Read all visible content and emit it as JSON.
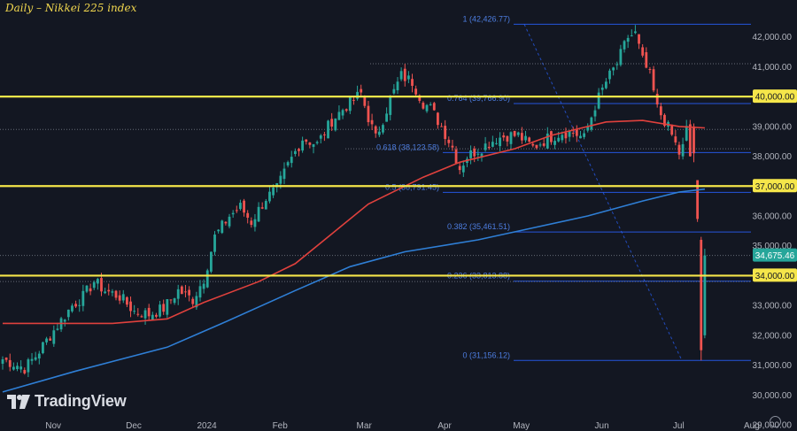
{
  "title": "Daily – Nikkei 225 index",
  "brand": "TradingView",
  "icons": {
    "logo": "tradingview-logo-icon",
    "settings": "settings-gear-icon"
  },
  "colors": {
    "background": "#131722",
    "up_candle": "#26a69a",
    "down_candle": "#ef5350",
    "sma_red": "#e0413d",
    "sma_blue": "#2f7fd6",
    "horizontal_levels": "#f5e64a",
    "fib_lines": "#2962ff",
    "axis_text": "#b2b5be",
    "last_price_tag": "#26a69a"
  },
  "chart_data": {
    "type": "candlestick",
    "title": "Daily – Nikkei 225 index",
    "ylim": [
      29000,
      43000
    ],
    "x_tick_labels": [
      "Nov",
      "Dec",
      "2024",
      "Feb",
      "Mar",
      "Apr",
      "May",
      "Jun",
      "Jul",
      "Aug"
    ],
    "y_tick_labels": [
      {
        "value": 29000,
        "label": "29,000.00"
      },
      {
        "value": 30000,
        "label": "30,000.00"
      },
      {
        "value": 31000,
        "label": "31,000.00"
      },
      {
        "value": 32000,
        "label": "32,000.00"
      },
      {
        "value": 33000,
        "label": "33,000.00"
      },
      {
        "value": 34000,
        "label": "34,000.00"
      },
      {
        "value": 35000,
        "label": "35,000.00"
      },
      {
        "value": 36000,
        "label": "36,000.00"
      },
      {
        "value": 37000,
        "label": "37,000.00"
      },
      {
        "value": 38000,
        "label": "38,000.00"
      },
      {
        "value": 39000,
        "label": "39,000.00"
      },
      {
        "value": 40000,
        "label": "40,000.00"
      },
      {
        "value": 41000,
        "label": "41,000.00"
      },
      {
        "value": 42000,
        "label": "42,000.00"
      }
    ],
    "highlight_levels": [
      {
        "value": 40000,
        "label": "40,000.00"
      },
      {
        "value": 37000,
        "label": "37,000.00"
      },
      {
        "value": 34000,
        "label": "34,000.00"
      }
    ],
    "last_price": {
      "value": 34675.46,
      "label": "34,675.46"
    },
    "fibonacci": [
      {
        "ratio": "1",
        "value": 42426.77,
        "label": "1 (42,426.77)"
      },
      {
        "ratio": "0.764",
        "value": 39766.9,
        "label": "0.764 (39,766.90)"
      },
      {
        "ratio": "0.618",
        "value": 38123.58,
        "label": "0.618 (38,123.58)"
      },
      {
        "ratio": "0.5",
        "value": 36791.45,
        "label": "0.5 (36,791.45)"
      },
      {
        "ratio": "0.382",
        "value": 35461.51,
        "label": "0.382 (35,461.51)"
      },
      {
        "ratio": "0.236",
        "value": 33813.88,
        "label": "0.236 (33,813.88)"
      },
      {
        "ratio": "0",
        "value": 31156.12,
        "label": "0 (31,156.12)"
      }
    ],
    "grid": false,
    "candle_count": 190,
    "waypoints": [
      [
        0,
        31200
      ],
      [
        6,
        30900
      ],
      [
        9,
        31300
      ],
      [
        13,
        32000
      ],
      [
        16,
        32500
      ],
      [
        19,
        33000
      ],
      [
        22,
        33300
      ],
      [
        25,
        33800
      ],
      [
        28,
        33500
      ],
      [
        32,
        33300
      ],
      [
        36,
        32800
      ],
      [
        40,
        32700
      ],
      [
        44,
        32900
      ],
      [
        48,
        33500
      ],
      [
        52,
        33200
      ],
      [
        55,
        33900
      ],
      [
        58,
        35300
      ],
      [
        62,
        36000
      ],
      [
        65,
        36300
      ],
      [
        68,
        35800
      ],
      [
        72,
        36600
      ],
      [
        75,
        36900
      ],
      [
        78,
        37700
      ],
      [
        82,
        38600
      ],
      [
        86,
        38400
      ],
      [
        90,
        39200
      ],
      [
        94,
        39700
      ],
      [
        98,
        40100
      ],
      [
        100,
        39300
      ],
      [
        102,
        38600
      ],
      [
        106,
        39900
      ],
      [
        109,
        40700
      ],
      [
        112,
        40500
      ],
      [
        115,
        39800
      ],
      [
        117,
        39600
      ],
      [
        120,
        39000
      ],
      [
        123,
        38300
      ],
      [
        125,
        37600
      ],
      [
        127,
        38000
      ],
      [
        131,
        38300
      ],
      [
        135,
        38600
      ],
      [
        138,
        38700
      ],
      [
        141,
        38700
      ],
      [
        145,
        38300
      ],
      [
        149,
        38600
      ],
      [
        153,
        38800
      ],
      [
        156,
        38800
      ],
      [
        159,
        38600
      ],
      [
        162,
        39700
      ],
      [
        165,
        40500
      ],
      [
        168,
        41100
      ],
      [
        171,
        42000
      ],
      [
        173,
        42100
      ],
      [
        175,
        41200
      ],
      [
        177,
        40700
      ],
      [
        179,
        39600
      ],
      [
        181,
        39200
      ],
      [
        183,
        38700
      ],
      [
        185,
        38100
      ],
      [
        186,
        38300
      ],
      [
        187,
        38900
      ],
      [
        188,
        38000
      ],
      [
        189,
        37200
      ],
      [
        190,
        36000
      ],
      [
        191,
        31500
      ],
      [
        192,
        34675.46
      ]
    ],
    "last_candles": [
      {
        "open": 39000,
        "high": 39100,
        "low": 37800,
        "close": 38100
      },
      {
        "open": 37200,
        "high": 37200,
        "low": 35800,
        "close": 35900
      },
      {
        "open": 35200,
        "high": 35300,
        "low": 31156.12,
        "close": 31500
      },
      {
        "open": 32000,
        "high": 34900,
        "low": 31900,
        "close": 34675.46
      }
    ],
    "series": [
      {
        "kind": "sma",
        "color": "red",
        "points": [
          [
            0,
            32400
          ],
          [
            30,
            32400
          ],
          [
            45,
            32550
          ],
          [
            55,
            33100
          ],
          [
            70,
            33800
          ],
          [
            80,
            34400
          ],
          [
            90,
            35400
          ],
          [
            100,
            36400
          ],
          [
            115,
            37300
          ],
          [
            125,
            37800
          ],
          [
            140,
            38250
          ],
          [
            150,
            38700
          ],
          [
            165,
            39150
          ],
          [
            175,
            39200
          ],
          [
            185,
            39000
          ],
          [
            192,
            38950
          ]
        ]
      },
      {
        "kind": "sma",
        "color": "blue",
        "points": [
          [
            0,
            30100
          ],
          [
            20,
            30800
          ],
          [
            45,
            31600
          ],
          [
            60,
            32400
          ],
          [
            80,
            33500
          ],
          [
            95,
            34300
          ],
          [
            110,
            34800
          ],
          [
            130,
            35200
          ],
          [
            145,
            35600
          ],
          [
            160,
            36000
          ],
          [
            175,
            36500
          ],
          [
            185,
            36800
          ],
          [
            192,
            36900
          ]
        ]
      }
    ]
  }
}
